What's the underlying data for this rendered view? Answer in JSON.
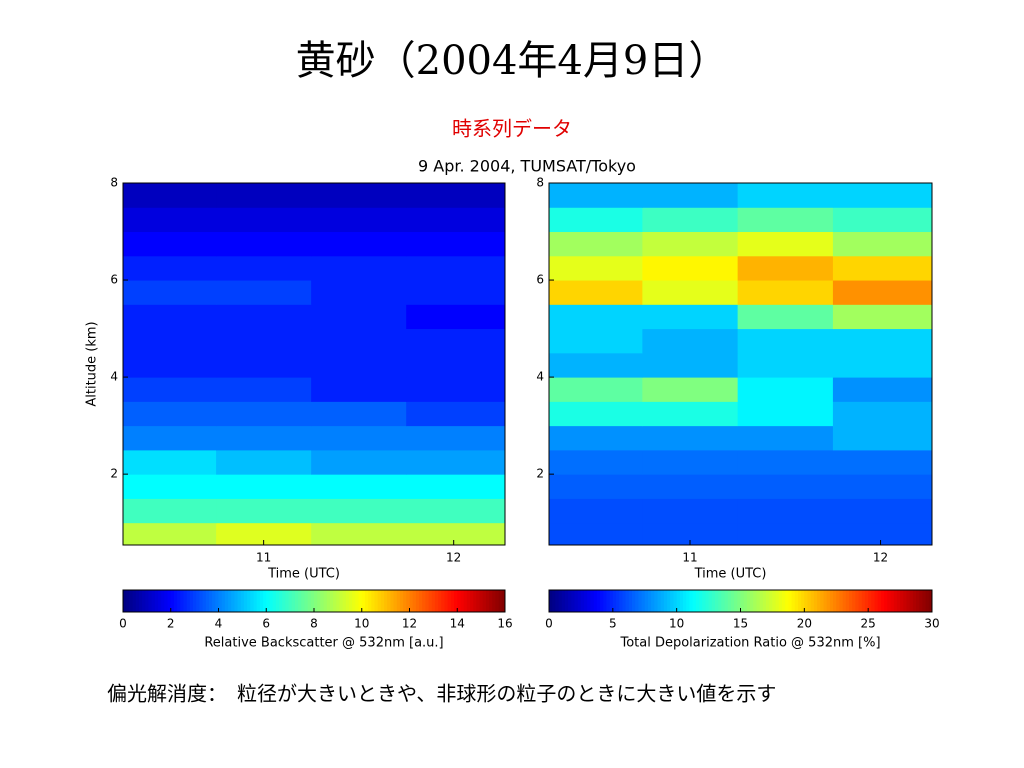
{
  "header": {
    "title": "黄砂（2004年4月9日）",
    "subtitle": "時系列データ"
  },
  "suptitle": "9 Apr. 2004, TUMSAT/Tokyo",
  "footer": "偏光解消度：　粒径が大きいときや、非球形の粒子のときに大きい値を示す",
  "chart_data": [
    {
      "type": "heatmap",
      "colormap": "jet",
      "x_label": "Time (UTC)",
      "y_label": "Altitude (km)",
      "colorbar_label": "Relative Backscatter @ 532nm [a.u.]",
      "xlim": [
        10.26,
        12.27
      ],
      "xticks": [
        11,
        12
      ],
      "ylim": [
        0.54,
        8
      ],
      "yticks": [
        2,
        4,
        6,
        8
      ],
      "clim": [
        0,
        16
      ],
      "cticks": [
        0,
        2,
        4,
        6,
        8,
        10,
        12,
        14,
        16
      ],
      "x": [
        10.5,
        11.0,
        11.5,
        12.0
      ],
      "y": [
        0.75,
        1.25,
        1.75,
        2.25,
        2.75,
        3.25,
        3.75,
        4.25,
        4.75,
        5.25,
        5.75,
        6.25,
        6.75,
        7.25,
        7.75
      ],
      "values": [
        [
          9,
          9.5,
          9,
          9
        ],
        [
          7,
          7,
          7,
          7
        ],
        [
          6,
          6,
          6,
          6
        ],
        [
          5.5,
          5,
          4.5,
          4.5
        ],
        [
          4,
          4,
          4,
          4
        ],
        [
          3.5,
          3.5,
          3.5,
          3
        ],
        [
          3,
          3,
          2.5,
          2.5
        ],
        [
          2.5,
          2.5,
          2.5,
          2.5
        ],
        [
          2.5,
          2.5,
          2.5,
          2.5
        ],
        [
          2.5,
          2.5,
          2.5,
          2
        ],
        [
          3,
          3,
          2.5,
          2.5
        ],
        [
          2.5,
          2.5,
          2.5,
          2.5
        ],
        [
          2,
          2,
          2,
          2
        ],
        [
          1.5,
          1.5,
          1.5,
          1.5
        ],
        [
          1,
          1,
          1,
          1
        ]
      ]
    },
    {
      "type": "heatmap",
      "colormap": "jet",
      "x_label": "Time (UTC)",
      "colorbar_label": "Total Depolarization Ratio @ 532nm [%]",
      "xlim": [
        10.26,
        12.27
      ],
      "xticks": [
        11,
        12
      ],
      "ylim": [
        0.54,
        8
      ],
      "yticks": [
        2,
        4,
        6,
        8
      ],
      "clim": [
        0,
        30
      ],
      "cticks": [
        0,
        5,
        10,
        15,
        20,
        25,
        30
      ],
      "x": [
        10.5,
        11.0,
        11.5,
        12.0
      ],
      "y": [
        0.75,
        1.25,
        1.75,
        2.25,
        2.75,
        3.25,
        3.75,
        4.25,
        4.75,
        5.25,
        5.75,
        6.25,
        6.75,
        7.25,
        7.75
      ],
      "values": [
        [
          6,
          6,
          6,
          6
        ],
        [
          6,
          6,
          6,
          6
        ],
        [
          6.5,
          6.5,
          6.5,
          6.5
        ],
        [
          7,
          7,
          7,
          7
        ],
        [
          8,
          8,
          8,
          9
        ],
        [
          12,
          12,
          11,
          9
        ],
        [
          14,
          15,
          11,
          8
        ],
        [
          9,
          9,
          10,
          10
        ],
        [
          10,
          9,
          10,
          10
        ],
        [
          10,
          10,
          14,
          16
        ],
        [
          20,
          18,
          20,
          22
        ],
        [
          18,
          19,
          21,
          20
        ],
        [
          16,
          17,
          18,
          16
        ],
        [
          12,
          13,
          14,
          13
        ],
        [
          9,
          9,
          10,
          10
        ]
      ]
    }
  ]
}
